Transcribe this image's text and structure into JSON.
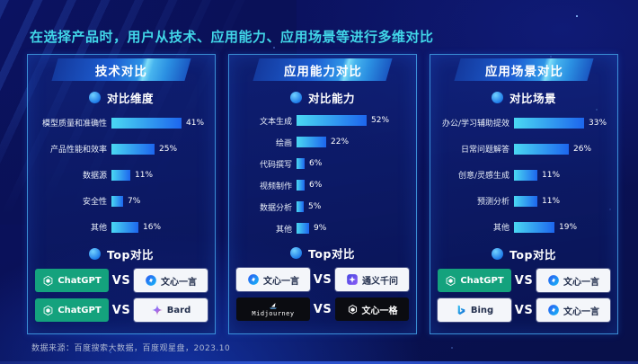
{
  "title": "在选择产品时，用户从技术、应用能力、应用场景等进行多维对比",
  "footer": "数据来源：百度搜索大数据，百度观星盘，2023.10",
  "shared": {
    "vs_label": "VS",
    "top_label": "Top对比"
  },
  "colors": {
    "background": "#0a1158",
    "title_accent": "#41d6e8",
    "panel_border": "#46aaf0",
    "banner_gradient": [
      "#143a9e",
      "#2d93e6",
      "#7eddf8"
    ],
    "bar_gradient": [
      "#4ad8f2",
      "#1d66ee"
    ],
    "chatgpt_badge": "#14a27d",
    "light_badge": "#f4f6fa",
    "dark_badge": "#0b0c11"
  },
  "icons": {
    "bullet": "circle-gradient-dot",
    "openai": "openai-hexagon-knot",
    "wenxin_yiyan": "blue-circle-mark",
    "bard": "gradient-sparkle",
    "tongyi_qianwen": "purple-rounded-square-star",
    "midjourney": "sailboat",
    "wenxin_yige": "hexagon-cube",
    "bing": "blue-b-swoosh"
  },
  "panels": [
    {
      "header": "技术对比",
      "section": "对比维度",
      "matchups": [
        {
          "left": {
            "name": "ChatGPT",
            "icon": "openai-icon",
            "style": "green"
          },
          "right": {
            "name": "文心一言",
            "icon": "wenxin-yiyan-icon",
            "style": "light"
          }
        },
        {
          "left": {
            "name": "ChatGPT",
            "icon": "openai-icon",
            "style": "green"
          },
          "right": {
            "name": "Bard",
            "icon": "bard-sparkle-icon",
            "style": "light"
          }
        }
      ]
    },
    {
      "header": "应用能力对比",
      "section": "对比能力",
      "matchups": [
        {
          "left": {
            "name": "文心一言",
            "icon": "wenxin-yiyan-icon",
            "style": "light"
          },
          "right": {
            "name": "通义千问",
            "icon": "tongyi-qianwen-icon",
            "style": "light"
          }
        },
        {
          "left": {
            "name": "Midjourney",
            "icon": "midjourney-sailboat-icon",
            "style": "dark"
          },
          "right": {
            "name": "文心一格",
            "icon": "wenxin-yige-icon",
            "style": "dark"
          }
        }
      ]
    },
    {
      "header": "应用场景对比",
      "section": "对比场景",
      "matchups": [
        {
          "left": {
            "name": "ChatGPT",
            "icon": "openai-icon",
            "style": "green"
          },
          "right": {
            "name": "文心一言",
            "icon": "wenxin-yiyan-icon",
            "style": "light"
          }
        },
        {
          "left": {
            "name": "Bing",
            "icon": "bing-icon",
            "style": "light"
          },
          "right": {
            "name": "文心一言",
            "icon": "wenxin-yiyan-icon",
            "style": "light"
          }
        }
      ]
    }
  ],
  "chart_data": [
    {
      "type": "bar",
      "title": "技术对比",
      "subtitle": "对比维度",
      "orientation": "horizontal",
      "categories": [
        "模型质量和准确性",
        "产品性能和效率",
        "数据源",
        "安全性",
        "其他"
      ],
      "values": [
        41,
        25,
        11,
        7,
        16
      ],
      "unit": "%",
      "value_labels": true,
      "xlabel": "",
      "ylabel": "",
      "grid": false,
      "legend": false
    },
    {
      "type": "bar",
      "title": "应用能力对比",
      "subtitle": "对比能力",
      "orientation": "horizontal",
      "categories": [
        "文本生成",
        "绘画",
        "代码撰写",
        "视频制作",
        "数据分析",
        "其他"
      ],
      "values": [
        52,
        22,
        6,
        6,
        5,
        9
      ],
      "unit": "%",
      "value_labels": true,
      "xlabel": "",
      "ylabel": "",
      "grid": false,
      "legend": false
    },
    {
      "type": "bar",
      "title": "应用场景对比",
      "subtitle": "对比场景",
      "orientation": "horizontal",
      "categories": [
        "办公/学习辅助提效",
        "日常问题解答",
        "创意/灵感生成",
        "预测分析",
        "其他"
      ],
      "values": [
        33,
        26,
        11,
        11,
        19
      ],
      "unit": "%",
      "value_labels": true,
      "xlabel": "",
      "ylabel": "",
      "grid": false,
      "legend": false
    }
  ]
}
